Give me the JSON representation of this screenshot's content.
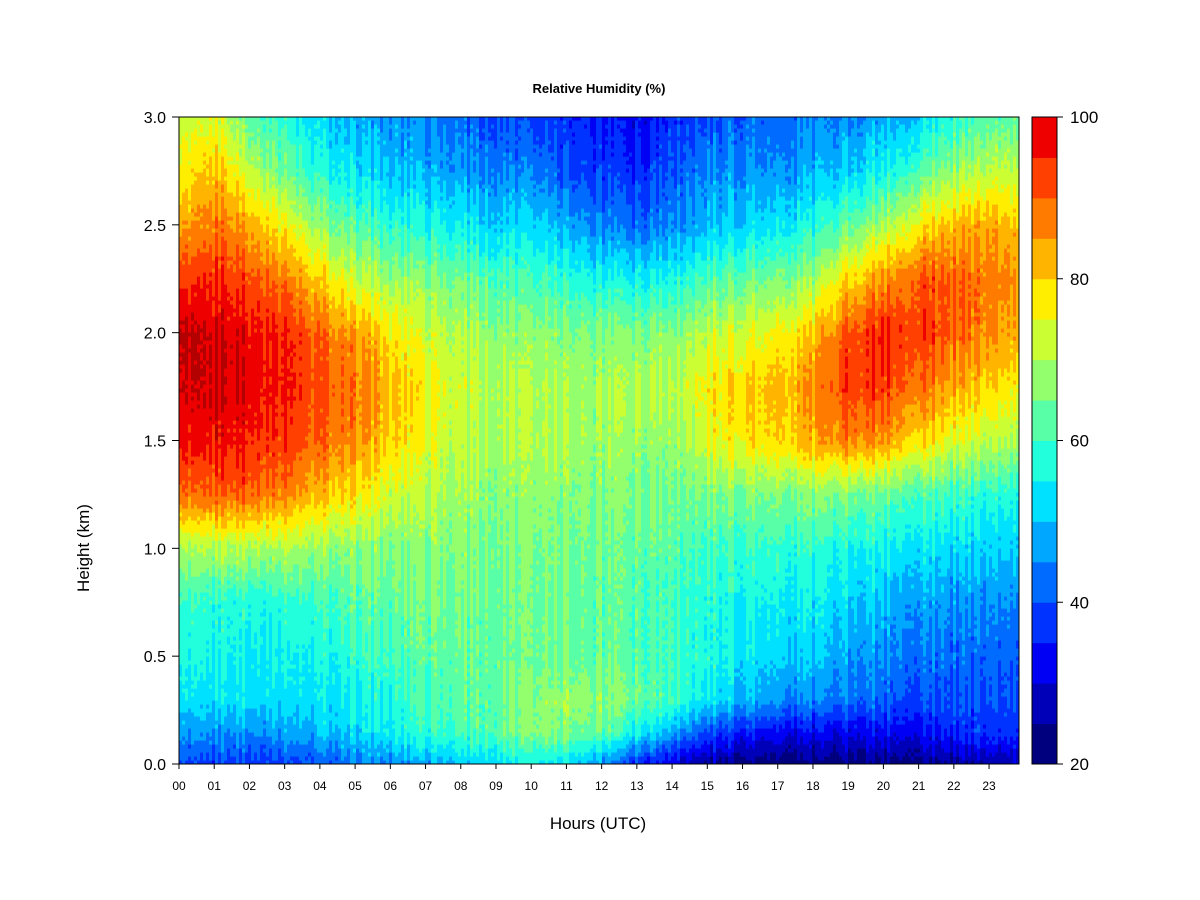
{
  "chart_data": {
    "type": "heatmap",
    "title": "Relative Humidity (%)",
    "xlabel": "Hours (UTC)",
    "ylabel": "Height (km)",
    "xlim": [
      0,
      23.85
    ],
    "ylim": [
      0.0,
      3.0
    ],
    "x_ticks": [
      "00",
      "01",
      "02",
      "03",
      "04",
      "05",
      "06",
      "07",
      "08",
      "09",
      "10",
      "11",
      "12",
      "13",
      "14",
      "15",
      "16",
      "17",
      "18",
      "19",
      "20",
      "21",
      "22",
      "23"
    ],
    "y_ticks": [
      "0.0",
      "0.5",
      "1.0",
      "1.5",
      "2.0",
      "2.5",
      "3.0"
    ],
    "colorbar": {
      "min": 20,
      "max": 100,
      "step": 5,
      "tick_labels": [
        "20",
        "40",
        "60",
        "80",
        "100"
      ],
      "colors": [
        "#00007f",
        "#0000b8",
        "#0000f5",
        "#0033ff",
        "#006cff",
        "#00a7ff",
        "#00e0ff",
        "#22ffdd",
        "#59ffa6",
        "#93ff6c",
        "#ccff33",
        "#ffee00",
        "#ffb500",
        "#ff7b00",
        "#ff4000",
        "#ef0000",
        "#b30000",
        "#7f0000"
      ]
    },
    "grid": false,
    "legend": "right colorbar",
    "heights": [
      0.0,
      0.15,
      0.3,
      0.5,
      0.75,
      1.0,
      1.25,
      1.5,
      1.75,
      2.0,
      2.25,
      2.5,
      2.75,
      3.0
    ],
    "hours": [
      0,
      1,
      2,
      3,
      4,
      5,
      6,
      7,
      8,
      9,
      10,
      11,
      12,
      13,
      14,
      15,
      16,
      17,
      18,
      19,
      20,
      21,
      22,
      23,
      23.85
    ],
    "values": [
      [
        38,
        45,
        52,
        55,
        58,
        68,
        87,
        95,
        98,
        100,
        92,
        82,
        75,
        70
      ],
      [
        38,
        46,
        53,
        56,
        58,
        70,
        90,
        97,
        100,
        100,
        95,
        88,
        82,
        74
      ],
      [
        38,
        46,
        53,
        55,
        57,
        70,
        90,
        96,
        99,
        98,
        92,
        84,
        72,
        64
      ],
      [
        38,
        47,
        53,
        55,
        58,
        70,
        87,
        93,
        96,
        95,
        88,
        76,
        64,
        58
      ],
      [
        40,
        50,
        54,
        56,
        60,
        68,
        82,
        90,
        92,
        90,
        80,
        68,
        58,
        52
      ],
      [
        43,
        52,
        55,
        58,
        62,
        67,
        78,
        86,
        88,
        85,
        72,
        62,
        53,
        48
      ],
      [
        45,
        55,
        57,
        60,
        63,
        66,
        73,
        80,
        82,
        78,
        68,
        58,
        50,
        46
      ],
      [
        47,
        58,
        60,
        62,
        64,
        66,
        70,
        74,
        76,
        72,
        66,
        56,
        48,
        44
      ],
      [
        50,
        60,
        62,
        63,
        64,
        66,
        68,
        71,
        72,
        70,
        64,
        54,
        46,
        42
      ],
      [
        53,
        63,
        64,
        64,
        64,
        66,
        67,
        70,
        71,
        68,
        62,
        52,
        45,
        40
      ],
      [
        55,
        66,
        66,
        64,
        64,
        65,
        67,
        70,
        70,
        67,
        60,
        52,
        44,
        38
      ],
      [
        53,
        66,
        68,
        64,
        64,
        65,
        66,
        69,
        69,
        66,
        58,
        48,
        40,
        36
      ],
      [
        45,
        63,
        67,
        63,
        63,
        64,
        66,
        68,
        69,
        66,
        56,
        44,
        38,
        34
      ],
      [
        36,
        55,
        64,
        62,
        62,
        63,
        65,
        68,
        70,
        66,
        55,
        42,
        36,
        32
      ],
      [
        30,
        48,
        60,
        60,
        60,
        62,
        64,
        67,
        70,
        66,
        56,
        44,
        40,
        36
      ],
      [
        26,
        40,
        54,
        58,
        58,
        61,
        66,
        75,
        78,
        72,
        62,
        50,
        46,
        40
      ],
      [
        23,
        36,
        50,
        54,
        56,
        60,
        66,
        78,
        80,
        74,
        64,
        52,
        46,
        42
      ],
      [
        22,
        33,
        46,
        52,
        55,
        59,
        66,
        80,
        82,
        76,
        66,
        54,
        46,
        42
      ],
      [
        22,
        32,
        44,
        50,
        54,
        58,
        66,
        82,
        86,
        80,
        68,
        56,
        48,
        44
      ],
      [
        23,
        33,
        44,
        48,
        52,
        57,
        66,
        88,
        94,
        92,
        80,
        64,
        52,
        46
      ],
      [
        24,
        34,
        42,
        46,
        50,
        56,
        64,
        86,
        94,
        96,
        86,
        70,
        56,
        48
      ],
      [
        24,
        34,
        40,
        44,
        48,
        54,
        62,
        80,
        90,
        94,
        92,
        78,
        62,
        52
      ],
      [
        25,
        36,
        40,
        42,
        46,
        52,
        60,
        74,
        84,
        90,
        90,
        82,
        68,
        58
      ],
      [
        26,
        38,
        40,
        42,
        46,
        52,
        58,
        72,
        80,
        86,
        88,
        84,
        72,
        62
      ],
      [
        28,
        38,
        40,
        42,
        46,
        52,
        58,
        70,
        78,
        84,
        86,
        82,
        72,
        64
      ]
    ]
  }
}
